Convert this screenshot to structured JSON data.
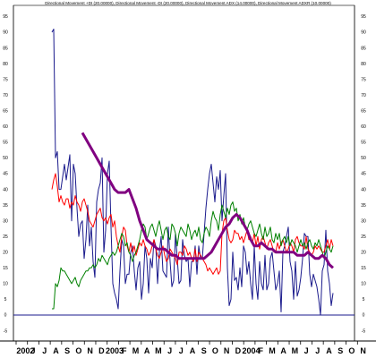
{
  "chart_data": {
    "type": "line",
    "title": "Directional Movement +DI (20.00000), Directional Movement -DI (20.00000), Directional Movement ADX (14.00000), Directional Movement ADXR (10.00000)",
    "ylim": [
      -10,
      100
    ],
    "y_ticks": [
      -5,
      0,
      5,
      10,
      15,
      20,
      25,
      30,
      35,
      40,
      45,
      50,
      55,
      60,
      65,
      70,
      75,
      80,
      85,
      90,
      95
    ],
    "x_labels": [
      "2002",
      "J",
      "J",
      "A",
      "S",
      "O",
      "N",
      "D",
      "2003",
      "F",
      "M",
      "A",
      "M",
      "J",
      "J",
      "A",
      "S",
      "O",
      "N",
      "D",
      "2004",
      "F",
      "M",
      "A",
      "M",
      "J",
      "J",
      "A",
      "S",
      "O",
      "N"
    ],
    "grid": false,
    "reference_line": 0,
    "series": [
      {
        "color": "#1a1a8c",
        "x": [
          58,
          60,
          62,
          64,
          66,
          68,
          70,
          72,
          74,
          76,
          78,
          80,
          82,
          84,
          86,
          88,
          90,
          92,
          94,
          96,
          98,
          100,
          102,
          104,
          106,
          108,
          110,
          112,
          114,
          116,
          118,
          120,
          122,
          124,
          126,
          128,
          130,
          132,
          134,
          136,
          138,
          140,
          142,
          144,
          146,
          148,
          150,
          152,
          154,
          156,
          158,
          160,
          162,
          164,
          166,
          168,
          170,
          172,
          174,
          176,
          178,
          180,
          182,
          184,
          186,
          188,
          190,
          192,
          194,
          196,
          198,
          200,
          202,
          204,
          206,
          208,
          210,
          212,
          214,
          216,
          218,
          220,
          222,
          224,
          226,
          228,
          230,
          232,
          234,
          236,
          238,
          240,
          242,
          244,
          246,
          248,
          250,
          252,
          254,
          256,
          258,
          260,
          262,
          264,
          266,
          268,
          270,
          272,
          274,
          276,
          278,
          280,
          282,
          284,
          286,
          288,
          290,
          292,
          294,
          296,
          298,
          300,
          302,
          304,
          306,
          308,
          310,
          312,
          314,
          316,
          318,
          320,
          322,
          324,
          326,
          328,
          330,
          332,
          334,
          336,
          338,
          340,
          342,
          344,
          346,
          348,
          350,
          352,
          354,
          356,
          358,
          360,
          362,
          364,
          366,
          368,
          370,
          372
        ],
        "values": [
          90,
          91,
          50,
          52,
          40,
          40,
          44,
          48,
          43,
          47,
          51,
          30,
          48,
          45,
          34,
          25,
          29,
          30,
          18,
          24,
          35,
          22,
          28,
          17,
          12,
          36,
          40,
          42,
          50,
          20,
          27,
          45,
          49,
          28,
          10,
          7,
          5,
          2,
          14,
          24,
          22,
          10,
          13,
          13,
          20,
          22,
          14,
          8,
          15,
          17,
          5,
          10,
          22,
          18,
          7,
          18,
          15,
          24,
          22,
          10,
          20,
          25,
          14,
          13,
          12,
          28,
          17,
          9,
          11,
          26,
          18,
          10,
          11,
          24,
          19,
          17,
          18,
          9,
          17,
          17,
          22,
          13,
          22,
          18,
          18,
          26,
          34,
          40,
          45,
          48,
          42,
          36,
          44,
          40,
          46,
          30,
          38,
          45,
          15,
          3,
          5,
          20,
          11,
          12,
          8,
          15,
          9,
          22,
          20,
          13,
          17,
          10,
          5,
          22,
          10,
          5,
          17,
          10,
          8,
          19,
          8,
          10,
          18,
          20,
          14,
          8,
          10,
          14,
          1,
          20,
          22,
          25,
          28,
          17,
          14,
          5,
          17,
          6,
          8,
          12,
          18,
          26,
          25,
          25,
          13,
          9,
          13,
          11,
          9,
          5,
          0,
          14,
          16,
          27,
          14,
          10,
          3,
          7
        ]
      },
      {
        "color": "#ff0000",
        "x": [
          58,
          60,
          62,
          64,
          66,
          68,
          70,
          72,
          74,
          76,
          78,
          80,
          82,
          84,
          86,
          88,
          90,
          92,
          94,
          96,
          98,
          100,
          102,
          104,
          106,
          108,
          110,
          112,
          114,
          116,
          118,
          120,
          122,
          124,
          126,
          128,
          130,
          132,
          134,
          136,
          138,
          140,
          142,
          144,
          146,
          148,
          150,
          152,
          154,
          156,
          158,
          160,
          162,
          164,
          166,
          168,
          170,
          172,
          174,
          176,
          178,
          180,
          182,
          184,
          186,
          188,
          190,
          192,
          194,
          196,
          198,
          200,
          202,
          204,
          206,
          208,
          210,
          212,
          214,
          216,
          218,
          220,
          222,
          224,
          226,
          228,
          230,
          232,
          234,
          236,
          238,
          240,
          242,
          244,
          246,
          248,
          250,
          252,
          254,
          256,
          258,
          260,
          262,
          264,
          266,
          268,
          270,
          272,
          274,
          276,
          278,
          280,
          282,
          284,
          286,
          288,
          290,
          292,
          294,
          296,
          298,
          300,
          302,
          304,
          306,
          308,
          310,
          312,
          314,
          316,
          318,
          320,
          322,
          324,
          326,
          328,
          330,
          332,
          334,
          336,
          338,
          340,
          342,
          344,
          346,
          348,
          350,
          352,
          354,
          356,
          358,
          360,
          362,
          364,
          366,
          368,
          370,
          372
        ],
        "values": [
          40,
          43,
          45,
          41,
          36,
          38,
          36,
          35,
          37,
          37,
          34,
          36,
          35,
          38,
          36,
          35,
          33,
          36,
          37,
          35,
          33,
          30,
          29,
          28,
          30,
          32,
          33,
          34,
          31,
          30,
          31,
          29,
          31,
          32,
          28,
          30,
          25,
          22,
          20,
          25,
          28,
          27,
          22,
          20,
          23,
          20,
          22,
          19,
          21,
          23,
          22,
          24,
          22,
          21,
          19,
          20,
          22,
          24,
          21,
          19,
          18,
          20,
          22,
          19,
          17,
          18,
          21,
          20,
          19,
          18,
          16,
          20,
          20,
          19,
          22,
          21,
          19,
          20,
          18,
          17,
          21,
          17,
          20,
          19,
          18,
          17,
          16,
          14,
          15,
          14,
          13,
          14,
          15,
          13,
          14,
          26,
          30,
          31,
          27,
          24,
          23,
          24,
          27,
          26,
          26,
          24,
          25,
          23,
          25,
          27,
          24,
          25,
          23,
          26,
          22,
          25,
          21,
          24,
          25,
          23,
          21,
          23,
          24,
          22,
          20,
          20,
          23,
          21,
          23,
          24,
          22,
          20,
          21,
          23,
          22,
          20,
          24,
          25,
          23,
          22,
          22,
          21,
          25,
          21,
          20,
          19,
          20,
          22,
          21,
          22,
          21,
          20,
          20,
          22,
          24,
          21,
          24,
          22
        ]
      },
      {
        "color": "#008000",
        "x": [
          58,
          60,
          62,
          64,
          66,
          68,
          70,
          72,
          74,
          76,
          78,
          80,
          82,
          84,
          86,
          88,
          90,
          92,
          94,
          96,
          98,
          100,
          102,
          104,
          106,
          108,
          110,
          112,
          114,
          116,
          118,
          120,
          122,
          124,
          126,
          128,
          130,
          132,
          134,
          136,
          138,
          140,
          142,
          144,
          146,
          148,
          150,
          152,
          154,
          156,
          158,
          160,
          162,
          164,
          166,
          168,
          170,
          172,
          174,
          176,
          178,
          180,
          182,
          184,
          186,
          188,
          190,
          192,
          194,
          196,
          198,
          200,
          202,
          204,
          206,
          208,
          210,
          212,
          214,
          216,
          218,
          220,
          222,
          224,
          226,
          228,
          230,
          232,
          234,
          236,
          238,
          240,
          242,
          244,
          246,
          248,
          250,
          252,
          254,
          256,
          258,
          260,
          262,
          264,
          266,
          268,
          270,
          272,
          274,
          276,
          278,
          280,
          282,
          284,
          286,
          288,
          290,
          292,
          294,
          296,
          298,
          300,
          302,
          304,
          306,
          308,
          310,
          312,
          314,
          316,
          318,
          320,
          322,
          324,
          326,
          328,
          330,
          332,
          334,
          336,
          338,
          340,
          342,
          344,
          346,
          348,
          350,
          352,
          354,
          356,
          358,
          360,
          362,
          364,
          366,
          368,
          370,
          372
        ],
        "values": [
          2,
          2,
          10,
          9,
          11,
          15,
          14,
          14,
          13,
          12,
          11,
          10,
          11,
          12,
          10,
          9,
          11,
          12,
          13,
          14,
          14,
          15,
          15,
          16,
          15,
          16,
          18,
          17,
          19,
          18,
          17,
          16,
          18,
          19,
          20,
          19,
          20,
          22,
          24,
          26,
          25,
          22,
          23,
          20,
          19,
          17,
          19,
          20,
          22,
          24,
          27,
          29,
          28,
          24,
          26,
          28,
          29,
          27,
          25,
          28,
          30,
          27,
          24,
          27,
          28,
          25,
          24,
          29,
          28,
          26,
          22,
          26,
          28,
          27,
          26,
          25,
          29,
          27,
          24,
          26,
          27,
          25,
          28,
          24,
          23,
          26,
          28,
          27,
          25,
          30,
          33,
          31,
          30,
          27,
          32,
          35,
          33,
          31,
          34,
          32,
          35,
          36,
          33,
          34,
          30,
          32,
          29,
          31,
          28,
          27,
          29,
          30,
          28,
          26,
          25,
          27,
          29,
          26,
          24,
          28,
          25,
          26,
          28,
          24,
          23,
          26,
          24,
          26,
          22,
          24,
          25,
          23,
          25,
          22,
          24,
          23,
          22,
          20,
          22,
          24,
          22,
          23,
          21,
          23,
          24,
          22,
          21,
          23,
          22,
          24,
          22,
          20,
          18,
          20,
          22,
          21,
          20,
          22
        ]
      },
      {
        "color": "#800080",
        "x": [
          92,
          96,
          100,
          104,
          108,
          112,
          116,
          120,
          124,
          128,
          132,
          136,
          140,
          144,
          148,
          152,
          156,
          160,
          164,
          168,
          172,
          176,
          180,
          184,
          188,
          192,
          196,
          200,
          204,
          208,
          212,
          216,
          220,
          224,
          228,
          232,
          236,
          240,
          244,
          248,
          252,
          256,
          260,
          264,
          268,
          272,
          276,
          280,
          284,
          288,
          292,
          296,
          300,
          304,
          308,
          312,
          316,
          320,
          324,
          328,
          332,
          336,
          340,
          344,
          348,
          352,
          356,
          360,
          364,
          368,
          372
        ],
        "values": [
          58,
          56,
          54,
          52,
          50,
          48,
          46,
          44,
          42,
          40,
          39,
          39,
          39,
          40,
          37,
          34,
          30,
          27,
          24,
          23,
          22,
          21,
          21,
          21,
          20,
          19,
          19,
          18,
          18,
          18,
          18,
          18,
          18,
          18,
          18,
          19,
          20,
          22,
          24,
          26,
          28,
          29,
          31,
          32,
          31,
          29,
          27,
          24,
          22,
          22,
          23,
          22,
          21,
          21,
          20,
          20,
          20,
          20,
          20,
          20,
          19,
          19,
          19,
          20,
          19,
          18,
          18,
          19,
          18,
          16,
          15
        ]
      }
    ]
  }
}
